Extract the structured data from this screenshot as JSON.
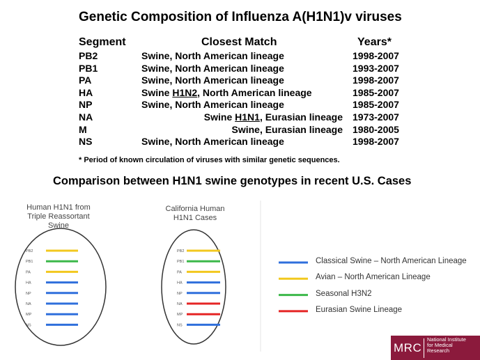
{
  "title": "Genetic Composition of Influenza A(H1N1)v viruses",
  "table": {
    "headers": {
      "segment": "Segment",
      "match": "Closest Match",
      "years": "Years*"
    },
    "rows": [
      {
        "segment": "PB2",
        "match_pre": "Swine, North American lineage",
        "match_u": "",
        "match_post": "",
        "years": "1998-2007",
        "align": "left"
      },
      {
        "segment": "PB1",
        "match_pre": "Swine, North American lineage",
        "match_u": "",
        "match_post": "",
        "years": "1993-2007",
        "align": "left"
      },
      {
        "segment": "PA",
        "match_pre": "Swine, North American lineage",
        "match_u": "",
        "match_post": "",
        "years": "1998-2007",
        "align": "left"
      },
      {
        "segment": "HA",
        "match_pre": "Swine ",
        "match_u": "H1N2",
        "match_post": ", North American lineage",
        "years": "1985-2007",
        "align": "left"
      },
      {
        "segment": "NP",
        "match_pre": "Swine, North American lineage",
        "match_u": "",
        "match_post": "",
        "years": "1985-2007",
        "align": "left"
      },
      {
        "segment": "NA",
        "match_pre": "Swine ",
        "match_u": "H1N1",
        "match_post": ", Eurasian lineage",
        "years": "1973-2007",
        "align": "right"
      },
      {
        "segment": "M",
        "match_pre": "Swine, Eurasian lineage",
        "match_u": "",
        "match_post": "",
        "years": "1980-2005",
        "align": "right"
      },
      {
        "segment": "NS",
        "match_pre": "Swine, North American lineage",
        "match_u": "",
        "match_post": "",
        "years": "1998-2007",
        "align": "left"
      }
    ]
  },
  "footnote": "* Period of known circulation of viruses with similar genetic sequences.",
  "subtitle": "Comparison between H1N1 swine genotypes in recent U.S. Cases",
  "colors": {
    "classical": "#2f6fdc",
    "avian": "#f2c81e",
    "seasonal": "#3cb84a",
    "eurasian": "#e52525",
    "logo_bg": "#8b1a3c"
  },
  "diagrams": [
    {
      "caption": [
        "Human H1N1 from",
        "Triple Reassortant",
        "Swine"
      ],
      "segments": [
        {
          "label": "PB2",
          "lineage": "avian"
        },
        {
          "label": "PB1",
          "lineage": "seasonal"
        },
        {
          "label": "PA",
          "lineage": "avian"
        },
        {
          "label": "HA",
          "lineage": "classical"
        },
        {
          "label": "NP",
          "lineage": "classical"
        },
        {
          "label": "NA",
          "lineage": "classical"
        },
        {
          "label": "MP",
          "lineage": "classical"
        },
        {
          "label": "NS",
          "lineage": "classical"
        }
      ]
    },
    {
      "caption": [
        "California Human",
        "H1N1 Cases"
      ],
      "segments": [
        {
          "label": "PB2",
          "lineage": "avian"
        },
        {
          "label": "PB1",
          "lineage": "seasonal"
        },
        {
          "label": "PA",
          "lineage": "avian"
        },
        {
          "label": "HA",
          "lineage": "classical"
        },
        {
          "label": "NP",
          "lineage": "classical"
        },
        {
          "label": "NA",
          "lineage": "eurasian"
        },
        {
          "label": "MP",
          "lineage": "eurasian"
        },
        {
          "label": "NS",
          "lineage": "classical"
        }
      ]
    }
  ],
  "legend": [
    {
      "key": "classical",
      "label": "Classical Swine – North American Lineage"
    },
    {
      "key": "avian",
      "label": "Avian – North American Lineage"
    },
    {
      "key": "seasonal",
      "label": "Seasonal H3N2"
    },
    {
      "key": "eurasian",
      "label": "Eurasian Swine Lineage"
    }
  ],
  "logo": {
    "mrc": "MRC",
    "lines": [
      "National Institute",
      "for Medical",
      "Research"
    ]
  }
}
